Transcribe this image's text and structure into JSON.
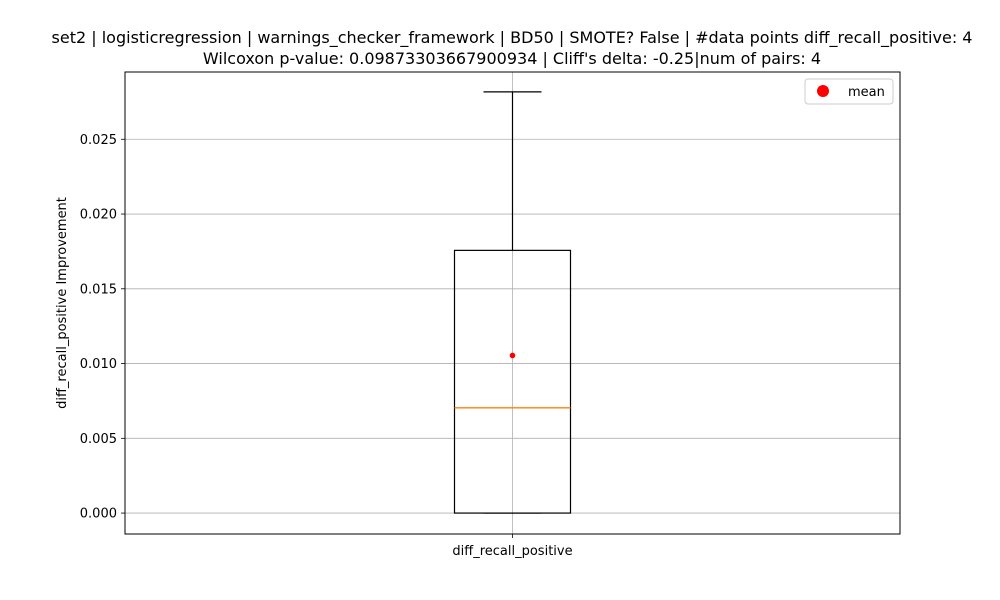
{
  "chart_data": {
    "type": "box",
    "title_line1": "set2 | logisticregression | warnings_checker_framework | BD50 | SMOTE? False | #data points diff_recall_positive: 4",
    "title_line2": "Wilcoxon p-value: 0.09873303667900934 | Cliff's delta: -0.25|num of pairs: 4",
    "ylabel": "diff_recall_positive Improvement",
    "categories": [
      "diff_recall_positive"
    ],
    "ylim": [
      -0.0014,
      0.0295
    ],
    "yticks": [
      0.0,
      0.005,
      0.01,
      0.015,
      0.02,
      0.025
    ],
    "ytick_labels": [
      "0.000",
      "0.005",
      "0.010",
      "0.015",
      "0.020",
      "0.025"
    ],
    "grid": true,
    "box": {
      "whisker_low": 0.0,
      "q1": 0.0,
      "median": 0.00704,
      "q3": 0.01757,
      "whisker_high": 0.02817,
      "mean": 0.01054
    },
    "legend": {
      "label": "mean",
      "placement": "top-right"
    },
    "colors": {
      "median": "#ff7f0e",
      "mean": "#ff0000",
      "grid": "#b0b0b0",
      "box": "#000000"
    }
  }
}
